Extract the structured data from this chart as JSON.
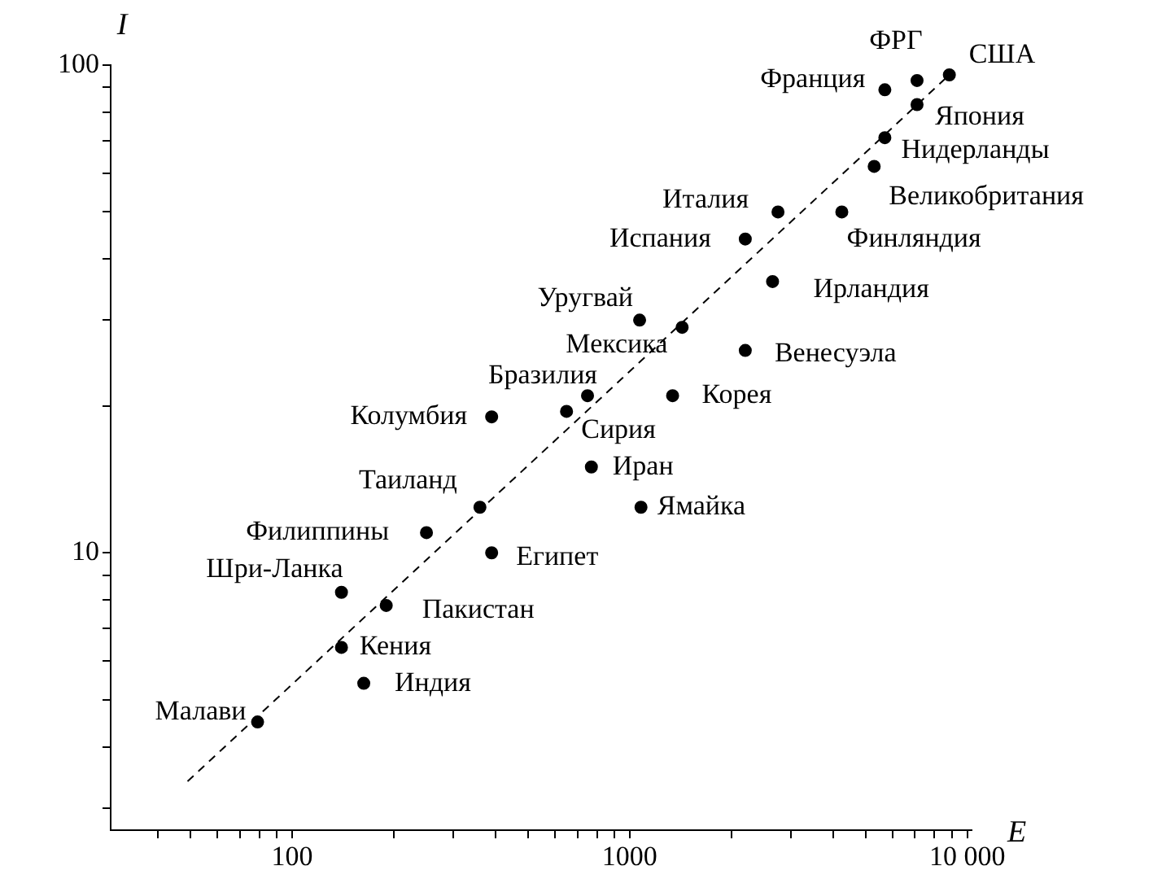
{
  "chart_data": {
    "type": "scatter",
    "xlabel": "E",
    "ylabel": "I",
    "log": "xy",
    "grid": false,
    "legend": false,
    "marker": "circle",
    "xlim": [
      29,
      10300
    ],
    "ylim": [
      2.7,
      100
    ],
    "xticks": [
      {
        "value": 40,
        "label": null
      },
      {
        "value": 50,
        "label": null
      },
      {
        "value": 60,
        "label": null
      },
      {
        "value": 70,
        "label": null
      },
      {
        "value": 80,
        "label": null
      },
      {
        "value": 90,
        "label": null
      },
      100,
      {
        "value": 200,
        "label": null
      },
      {
        "value": 300,
        "label": null
      },
      {
        "value": 400,
        "label": null
      },
      {
        "value": 500,
        "label": null
      },
      {
        "value": 600,
        "label": null
      },
      {
        "value": 700,
        "label": null
      },
      {
        "value": 800,
        "label": null
      },
      {
        "value": 900,
        "label": null
      },
      1000,
      {
        "value": 2000,
        "label": null
      },
      {
        "value": 3000,
        "label": null
      },
      {
        "value": 4000,
        "label": null
      },
      {
        "value": 5000,
        "label": null
      },
      {
        "value": 6000,
        "label": null
      },
      {
        "value": 7000,
        "label": null
      },
      {
        "value": 8000,
        "label": null
      },
      {
        "value": 9000,
        "label": null
      },
      {
        "value": 10000,
        "label": "10 000"
      }
    ],
    "yticks": [
      {
        "value": 3,
        "label": null
      },
      {
        "value": 4,
        "label": null
      },
      {
        "value": 5,
        "label": null
      },
      {
        "value": 6,
        "label": null
      },
      {
        "value": 7,
        "label": null
      },
      {
        "value": 8,
        "label": null
      },
      {
        "value": 9,
        "label": null
      },
      10,
      {
        "value": 20,
        "label": null
      },
      {
        "value": 30,
        "label": null
      },
      {
        "value": 40,
        "label": null
      },
      {
        "value": 50,
        "label": null
      },
      {
        "value": 60,
        "label": null
      },
      {
        "value": 70,
        "label": null
      },
      {
        "value": 80,
        "label": null
      },
      {
        "value": 90,
        "label": null
      },
      100
    ],
    "series": [
      {
        "type": "line",
        "color": "#000000",
        "line_style": "dashed",
        "marker": "none",
        "x": [
          49,
          8850
        ],
        "values": [
          3.4,
          95.5
        ]
      },
      {
        "name": "США",
        "color": "#000000",
        "x": [
          8850
        ],
        "values": [
          95.5
        ]
      },
      {
        "name": "ФРГ",
        "color": "#000000",
        "x": [
          7100
        ],
        "values": [
          93
        ]
      },
      {
        "name": "Франция",
        "color": "#000000",
        "x": [
          5700
        ],
        "values": [
          89
        ]
      },
      {
        "name": "Япония",
        "color": "#000000",
        "x": [
          7100
        ],
        "values": [
          83
        ]
      },
      {
        "name": "Нидерланды",
        "color": "#000000",
        "x": [
          5700
        ],
        "values": [
          71
        ]
      },
      {
        "name": "Великобритания",
        "color": "#000000",
        "x": [
          5300
        ],
        "values": [
          62
        ]
      },
      {
        "name": "Италия",
        "color": "#000000",
        "x": [
          2750
        ],
        "values": [
          50
        ]
      },
      {
        "name": "Финляндия",
        "color": "#000000",
        "x": [
          4250
        ],
        "values": [
          50
        ]
      },
      {
        "name": "Испания",
        "color": "#000000",
        "x": [
          2200
        ],
        "values": [
          44
        ]
      },
      {
        "name": "Ирландия",
        "color": "#000000",
        "x": [
          2650
        ],
        "values": [
          36
        ]
      },
      {
        "name": "Уругвай",
        "color": "#000000",
        "x": [
          1070
        ],
        "values": [
          30
        ]
      },
      {
        "name": "Мексика",
        "color": "#000000",
        "x": [
          1430
        ],
        "values": [
          29
        ]
      },
      {
        "name": "Венесуэла",
        "color": "#000000",
        "x": [
          2200
        ],
        "values": [
          26
        ]
      },
      {
        "name": "Бразилия",
        "color": "#000000",
        "x": [
          750
        ],
        "values": [
          21
        ]
      },
      {
        "name": "Корея",
        "color": "#000000",
        "x": [
          1340
        ],
        "values": [
          21
        ]
      },
      {
        "name": "Колумбия",
        "color": "#000000",
        "x": [
          390
        ],
        "values": [
          19
        ]
      },
      {
        "name": "Сирия",
        "color": "#000000",
        "x": [
          650
        ],
        "values": [
          19.5
        ]
      },
      {
        "name": "Иран",
        "color": "#000000",
        "x": [
          770
        ],
        "values": [
          15
        ]
      },
      {
        "name": "Ямайка",
        "color": "#000000",
        "x": [
          1080
        ],
        "values": [
          12.4
        ]
      },
      {
        "name": "Таиланд",
        "color": "#000000",
        "x": [
          360
        ],
        "values": [
          12.4
        ]
      },
      {
        "name": "Филиппины",
        "color": "#000000",
        "x": [
          250
        ],
        "values": [
          11
        ]
      },
      {
        "name": "Египет",
        "color": "#000000",
        "x": [
          390
        ],
        "values": [
          10
        ]
      },
      {
        "name": "Шри-Ланка",
        "color": "#000000",
        "x": [
          140
        ],
        "values": [
          8.3
        ]
      },
      {
        "name": "Пакистан",
        "color": "#000000",
        "x": [
          190
        ],
        "values": [
          7.8
        ]
      },
      {
        "name": "Кения",
        "color": "#000000",
        "x": [
          140
        ],
        "values": [
          6.4
        ]
      },
      {
        "name": "Индия",
        "color": "#000000",
        "x": [
          163
        ],
        "values": [
          5.4
        ]
      },
      {
        "name": "Малави",
        "color": "#000000",
        "x": [
          79
        ],
        "values": [
          4.5
        ]
      }
    ]
  }
}
